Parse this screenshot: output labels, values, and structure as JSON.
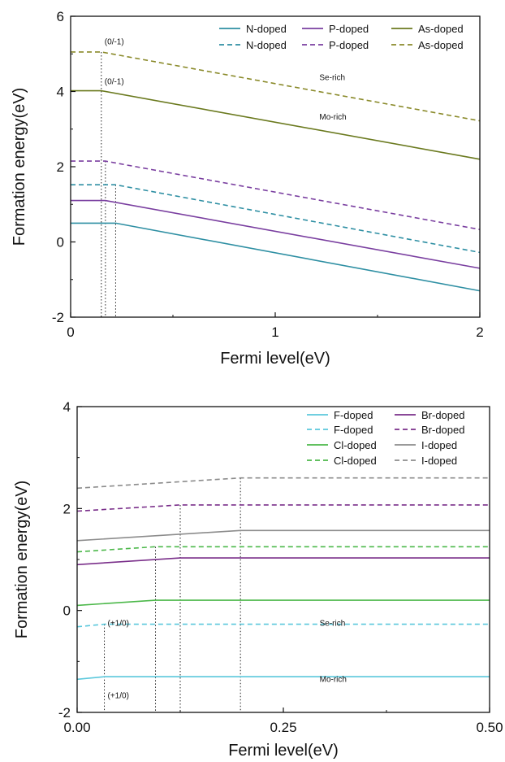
{
  "chart_data": [
    {
      "type": "line",
      "xlabel": "Fermi level(eV)",
      "ylabel": "Formation energy(eV)",
      "xlim": [
        0,
        2
      ],
      "ylim": [
        -2,
        6
      ],
      "xticks": [
        "0",
        "1",
        "2"
      ],
      "yticks": [
        "-2",
        "0",
        "2",
        "4",
        "6"
      ],
      "legend_position": "top-right",
      "annotations": [
        {
          "text": "(0/-1)",
          "x": 0.15,
          "y": 5.25
        },
        {
          "text": "(0/-1)",
          "x": 0.15,
          "y": 4.2
        },
        {
          "text": "Se-rich",
          "x": 1.2,
          "y": 4.3
        },
        {
          "text": "Mo-rich",
          "x": 1.2,
          "y": 3.25
        }
      ],
      "transition_levels": [
        0.15,
        0.17,
        0.22
      ],
      "series": [
        {
          "name": "N-doped",
          "color": "#2e8fa3",
          "dash": false,
          "x": [
            0,
            0.22,
            2
          ],
          "y": [
            0.5,
            0.5,
            -1.3
          ]
        },
        {
          "name": "P-doped",
          "color": "#7a3fa0",
          "dash": false,
          "x": [
            0,
            0.17,
            2
          ],
          "y": [
            1.1,
            1.1,
            -0.7
          ]
        },
        {
          "name": "As-doped",
          "color": "#6b7a1f",
          "dash": false,
          "x": [
            0,
            0.15,
            2
          ],
          "y": [
            4.02,
            4.02,
            2.2
          ]
        },
        {
          "name": "N-doped",
          "color": "#2e8fa3",
          "dash": true,
          "x": [
            0,
            0.22,
            2
          ],
          "y": [
            1.52,
            1.52,
            -0.28
          ]
        },
        {
          "name": "P-doped",
          "color": "#7a3fa0",
          "dash": true,
          "x": [
            0,
            0.17,
            2
          ],
          "y": [
            2.15,
            2.15,
            0.33
          ]
        },
        {
          "name": "As-doped",
          "color": "#8a8a2a",
          "dash": true,
          "x": [
            0,
            0.15,
            2
          ],
          "y": [
            5.05,
            5.05,
            3.22
          ]
        }
      ]
    },
    {
      "type": "line",
      "xlabel": "Fermi level(eV)",
      "ylabel": "Formation energy(eV)",
      "xlim": [
        0,
        0.5
      ],
      "ylim": [
        -2,
        4
      ],
      "xticks": [
        "0.00",
        "0.25",
        "0.50"
      ],
      "yticks": [
        "-2",
        "0",
        "2",
        "4"
      ],
      "legend_position": "top-right",
      "annotations": [
        {
          "text": "(+1/0)",
          "x": 0.033,
          "y": -0.3
        },
        {
          "text": "(+1/0)",
          "x": 0.033,
          "y": -1.72
        },
        {
          "text": "Se-rich",
          "x": 0.29,
          "y": -0.3
        },
        {
          "text": "Mo-rich",
          "x": 0.29,
          "y": -1.4
        }
      ],
      "transition_levels": [
        0.033,
        0.095,
        0.125,
        0.198
      ],
      "series": [
        {
          "name": "F-doped",
          "color": "#5bc8dc",
          "dash": false,
          "x": [
            0,
            0.033,
            0.5
          ],
          "y": [
            -1.35,
            -1.3,
            -1.3
          ]
        },
        {
          "name": "F-doped",
          "color": "#5bc8dc",
          "dash": true,
          "x": [
            0,
            0.033,
            0.5
          ],
          "y": [
            -0.32,
            -0.27,
            -0.27
          ]
        },
        {
          "name": "Cl-doped",
          "color": "#4cb84a",
          "dash": false,
          "x": [
            0,
            0.095,
            0.5
          ],
          "y": [
            0.1,
            0.2,
            0.2
          ]
        },
        {
          "name": "Cl-doped",
          "color": "#4cb84a",
          "dash": true,
          "x": [
            0,
            0.095,
            0.5
          ],
          "y": [
            1.15,
            1.25,
            1.25
          ]
        },
        {
          "name": "Br-doped",
          "color": "#7a2f8a",
          "dash": false,
          "x": [
            0,
            0.125,
            0.5
          ],
          "y": [
            0.9,
            1.03,
            1.03
          ]
        },
        {
          "name": "Br-doped",
          "color": "#7a2f8a",
          "dash": true,
          "x": [
            0,
            0.125,
            0.5
          ],
          "y": [
            1.95,
            2.07,
            2.07
          ]
        },
        {
          "name": "I-doped",
          "color": "#8c8c8c",
          "dash": false,
          "x": [
            0,
            0.198,
            0.5
          ],
          "y": [
            1.37,
            1.57,
            1.57
          ]
        },
        {
          "name": "I-doped",
          "color": "#8c8c8c",
          "dash": true,
          "x": [
            0,
            0.198,
            0.5
          ],
          "y": [
            2.4,
            2.6,
            2.6
          ]
        }
      ]
    }
  ]
}
